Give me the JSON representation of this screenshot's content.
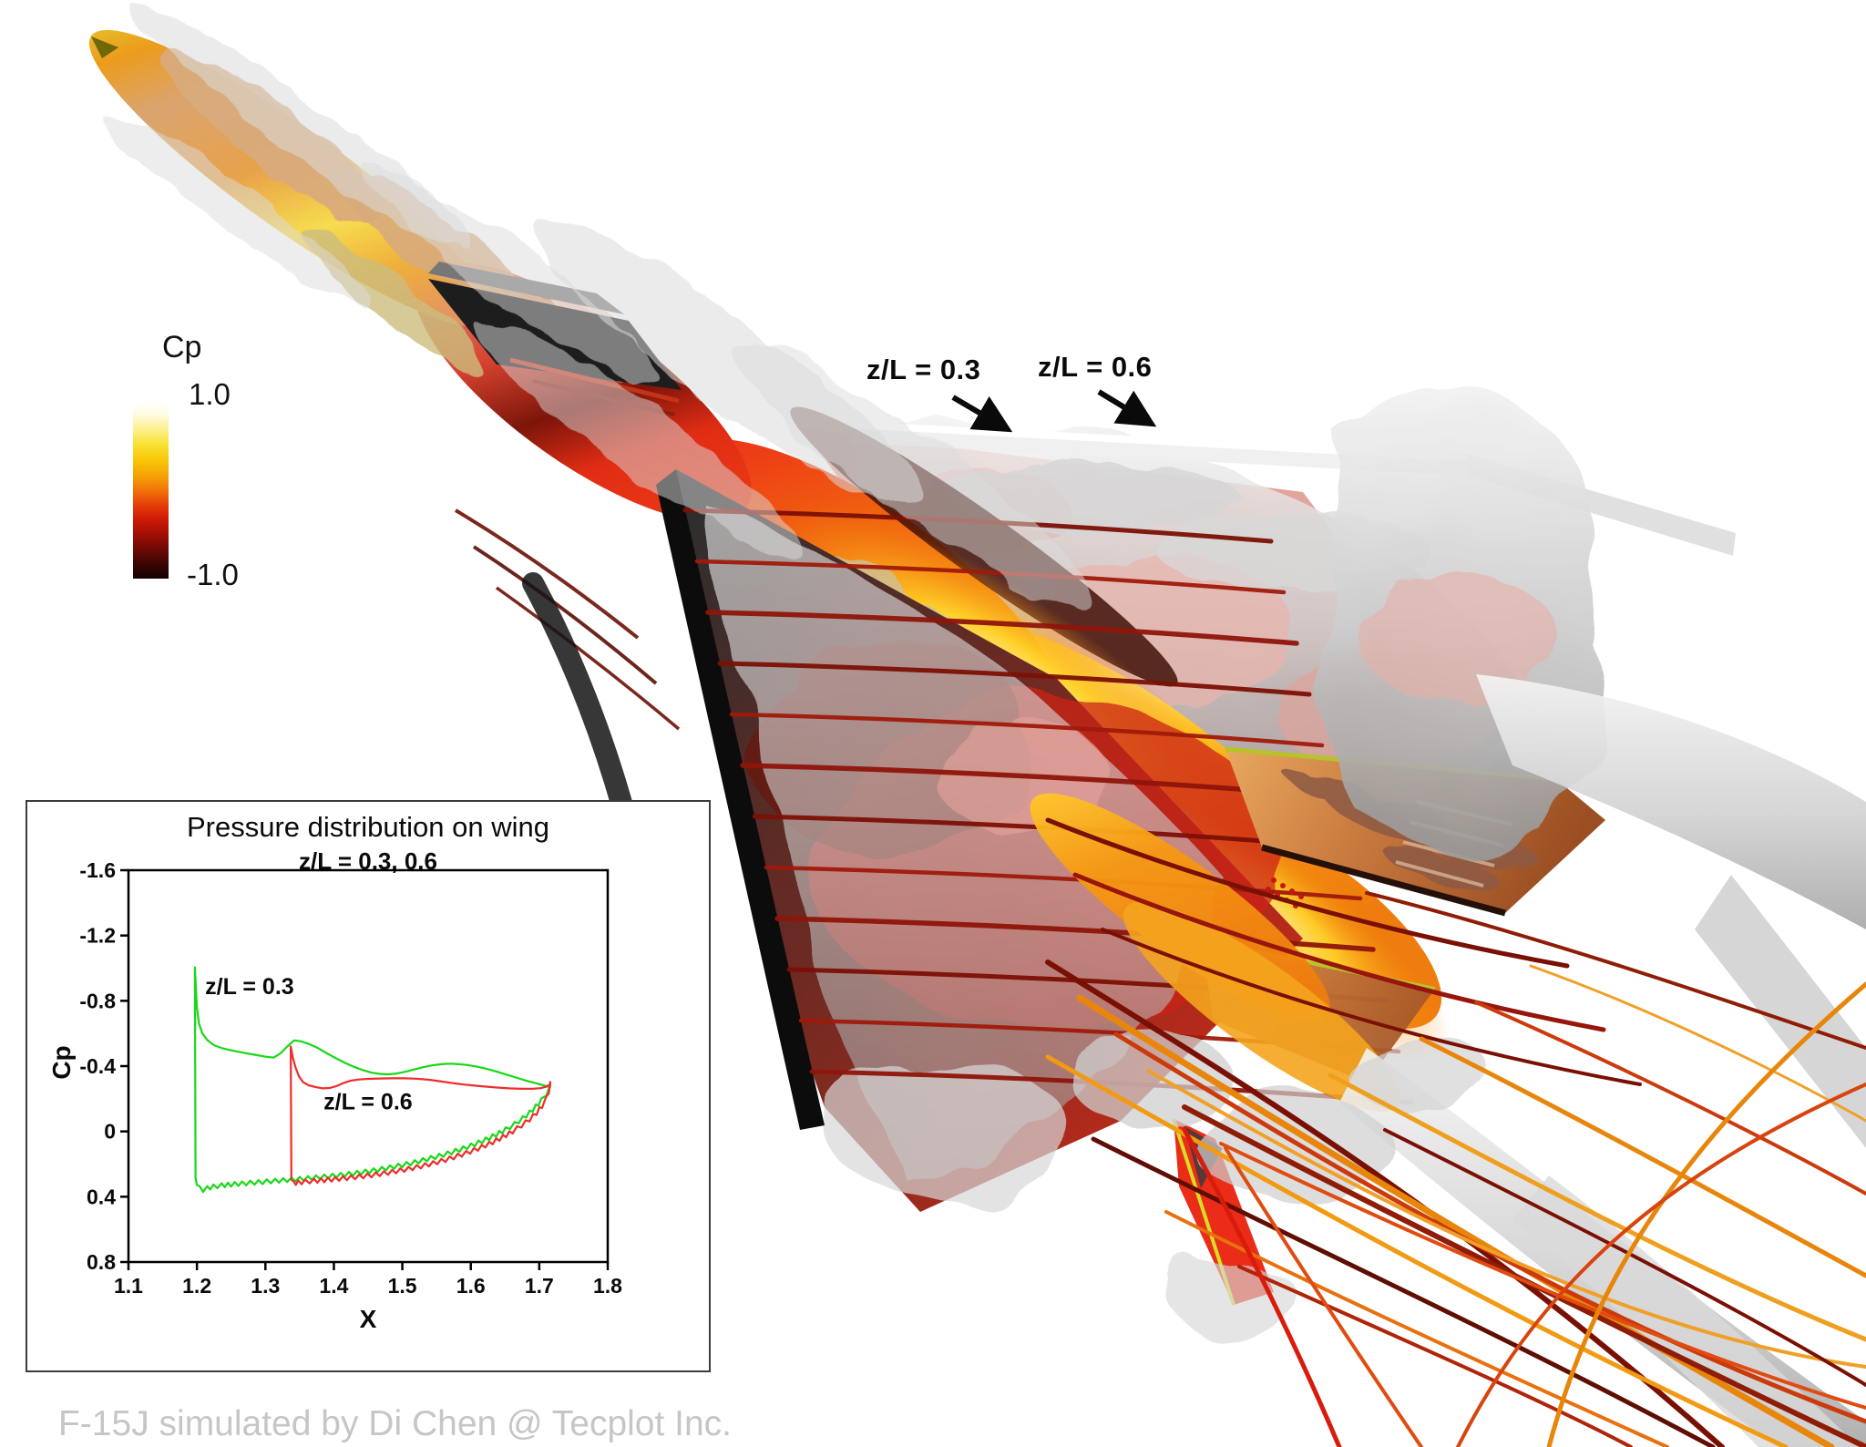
{
  "colorbar": {
    "title": "Cp",
    "max_label": "1.0",
    "min_label": "-1.0",
    "gradient_stops": [
      [
        "#ffffff",
        0
      ],
      [
        "#fffbe0",
        7
      ],
      [
        "#fcf08e",
        15
      ],
      [
        "#f9e33b",
        23
      ],
      [
        "#f8c908",
        32
      ],
      [
        "#f6a007",
        42
      ],
      [
        "#f06c08",
        51
      ],
      [
        "#e43a08",
        59
      ],
      [
        "#cb1805",
        67
      ],
      [
        "#a00f04",
        75
      ],
      [
        "#700a04",
        83
      ],
      [
        "#3f0503",
        91
      ],
      [
        "#140101",
        100
      ]
    ]
  },
  "annotations": {
    "slice1": "z/L = 0.3",
    "slice2": "z/L = 0.6"
  },
  "caption": "F-15J simulated by Di Chen @ Tecplot Inc.",
  "chart_data": {
    "type": "line",
    "title": "Pressure distribution on wing",
    "subtitle": "z/L = 0.3, 0.6",
    "xlabel": "X",
    "ylabel": "Cp",
    "xlim": [
      1.1,
      1.8
    ],
    "ylim_top_bottom": [
      -1.6,
      0.8
    ],
    "y_axis_inverted": true,
    "grid": false,
    "x_tick_values": [
      1.1,
      1.2,
      1.3,
      1.4,
      1.5,
      1.6,
      1.7,
      1.8
    ],
    "x_tick_labels": [
      "1.1",
      "1.2",
      "1.3",
      "1.4",
      "1.5",
      "1.6",
      "1.7",
      "1.8"
    ],
    "y_tick_values": [
      -1.6,
      -1.2,
      -0.8,
      -0.4,
      0,
      0.4,
      0.8
    ],
    "y_tick_labels": [
      "-1.6",
      "-1.2",
      "-0.8",
      "-0.4",
      "0",
      "0.4",
      "0.8"
    ],
    "lower_surface_jitter_amp": 0.013,
    "series": [
      {
        "name": "z/L = 0.3",
        "color": "#17d917",
        "label_pos": [
          1.212,
          -0.84
        ],
        "upper": [
          [
            1.198,
            0.285
          ],
          [
            1.197,
            -1.005
          ],
          [
            1.2,
            -0.76
          ],
          [
            1.203,
            -0.66
          ],
          [
            1.208,
            -0.6
          ],
          [
            1.215,
            -0.56
          ],
          [
            1.225,
            -0.528
          ],
          [
            1.238,
            -0.508
          ],
          [
            1.252,
            -0.495
          ],
          [
            1.268,
            -0.482
          ],
          [
            1.284,
            -0.47
          ],
          [
            1.3,
            -0.458
          ],
          [
            1.312,
            -0.452
          ],
          [
            1.322,
            -0.478
          ],
          [
            1.332,
            -0.52
          ],
          [
            1.342,
            -0.558
          ],
          [
            1.352,
            -0.552
          ],
          [
            1.364,
            -0.535
          ],
          [
            1.377,
            -0.51
          ],
          [
            1.39,
            -0.478
          ],
          [
            1.403,
            -0.448
          ],
          [
            1.416,
            -0.42
          ],
          [
            1.429,
            -0.396
          ],
          [
            1.442,
            -0.376
          ],
          [
            1.455,
            -0.36
          ],
          [
            1.468,
            -0.352
          ],
          [
            1.48,
            -0.35
          ],
          [
            1.492,
            -0.355
          ],
          [
            1.505,
            -0.366
          ],
          [
            1.518,
            -0.38
          ],
          [
            1.531,
            -0.394
          ],
          [
            1.544,
            -0.405
          ],
          [
            1.557,
            -0.412
          ],
          [
            1.57,
            -0.415
          ],
          [
            1.583,
            -0.412
          ],
          [
            1.596,
            -0.406
          ],
          [
            1.61,
            -0.396
          ],
          [
            1.624,
            -0.382
          ],
          [
            1.638,
            -0.366
          ],
          [
            1.652,
            -0.348
          ],
          [
            1.666,
            -0.33
          ],
          [
            1.68,
            -0.312
          ],
          [
            1.694,
            -0.296
          ],
          [
            1.706,
            -0.283
          ],
          [
            1.716,
            -0.272
          ]
        ],
        "lower": [
          [
            1.716,
            -0.272
          ],
          [
            1.71,
            -0.23
          ],
          [
            1.703,
            -0.19
          ],
          [
            1.695,
            -0.152
          ],
          [
            1.686,
            -0.115
          ],
          [
            1.676,
            -0.08
          ],
          [
            1.664,
            -0.045
          ],
          [
            1.651,
            -0.012
          ],
          [
            1.637,
            0.02
          ],
          [
            1.622,
            0.05
          ],
          [
            1.606,
            0.078
          ],
          [
            1.589,
            0.104
          ],
          [
            1.572,
            0.128
          ],
          [
            1.554,
            0.15
          ],
          [
            1.536,
            0.17
          ],
          [
            1.518,
            0.189
          ],
          [
            1.5,
            0.206
          ],
          [
            1.482,
            0.221
          ],
          [
            1.464,
            0.235
          ],
          [
            1.446,
            0.247
          ],
          [
            1.428,
            0.258
          ],
          [
            1.41,
            0.267
          ],
          [
            1.392,
            0.275
          ],
          [
            1.374,
            0.282
          ],
          [
            1.356,
            0.289
          ],
          [
            1.338,
            0.295
          ],
          [
            1.32,
            0.301
          ],
          [
            1.302,
            0.307
          ],
          [
            1.284,
            0.313
          ],
          [
            1.266,
            0.319
          ],
          [
            1.25,
            0.325
          ],
          [
            1.236,
            0.331
          ],
          [
            1.224,
            0.338
          ],
          [
            1.215,
            0.348
          ],
          [
            1.209,
            0.358
          ],
          [
            1.204,
            0.348
          ],
          [
            1.2,
            0.315
          ],
          [
            1.198,
            0.285
          ]
        ]
      },
      {
        "name": "z/L = 0.6",
        "color": "#ee2c2c",
        "label_pos": [
          1.385,
          -0.135
        ],
        "upper": [
          [
            1.338,
            0.3
          ],
          [
            1.337,
            -0.52
          ],
          [
            1.34,
            -0.455
          ],
          [
            1.344,
            -0.392
          ],
          [
            1.349,
            -0.338
          ],
          [
            1.355,
            -0.302
          ],
          [
            1.363,
            -0.283
          ],
          [
            1.373,
            -0.272
          ],
          [
            1.384,
            -0.264
          ],
          [
            1.394,
            -0.266
          ],
          [
            1.404,
            -0.278
          ],
          [
            1.414,
            -0.296
          ],
          [
            1.424,
            -0.31
          ],
          [
            1.436,
            -0.318
          ],
          [
            1.45,
            -0.322
          ],
          [
            1.466,
            -0.324
          ],
          [
            1.484,
            -0.325
          ],
          [
            1.502,
            -0.325
          ],
          [
            1.52,
            -0.323
          ],
          [
            1.538,
            -0.317
          ],
          [
            1.554,
            -0.308
          ],
          [
            1.57,
            -0.298
          ],
          [
            1.586,
            -0.289
          ],
          [
            1.602,
            -0.282
          ],
          [
            1.62,
            -0.275
          ],
          [
            1.638,
            -0.269
          ],
          [
            1.656,
            -0.264
          ],
          [
            1.674,
            -0.261
          ],
          [
            1.69,
            -0.261
          ],
          [
            1.702,
            -0.265
          ],
          [
            1.711,
            -0.275
          ],
          [
            1.716,
            -0.29
          ]
        ],
        "lower": [
          [
            1.716,
            -0.29
          ],
          [
            1.714,
            -0.245
          ],
          [
            1.71,
            -0.2
          ],
          [
            1.704,
            -0.156
          ],
          [
            1.696,
            -0.114
          ],
          [
            1.686,
            -0.074
          ],
          [
            1.674,
            -0.036
          ],
          [
            1.661,
            0.0
          ],
          [
            1.647,
            0.034
          ],
          [
            1.632,
            0.066
          ],
          [
            1.616,
            0.096
          ],
          [
            1.599,
            0.124
          ],
          [
            1.581,
            0.15
          ],
          [
            1.563,
            0.174
          ],
          [
            1.545,
            0.195
          ],
          [
            1.527,
            0.214
          ],
          [
            1.509,
            0.23
          ],
          [
            1.491,
            0.244
          ],
          [
            1.473,
            0.257
          ],
          [
            1.455,
            0.268
          ],
          [
            1.437,
            0.277
          ],
          [
            1.419,
            0.285
          ],
          [
            1.402,
            0.292
          ],
          [
            1.386,
            0.298
          ],
          [
            1.371,
            0.303
          ],
          [
            1.358,
            0.308
          ],
          [
            1.348,
            0.313
          ],
          [
            1.341,
            0.317
          ],
          [
            1.338,
            0.3
          ]
        ]
      }
    ]
  }
}
